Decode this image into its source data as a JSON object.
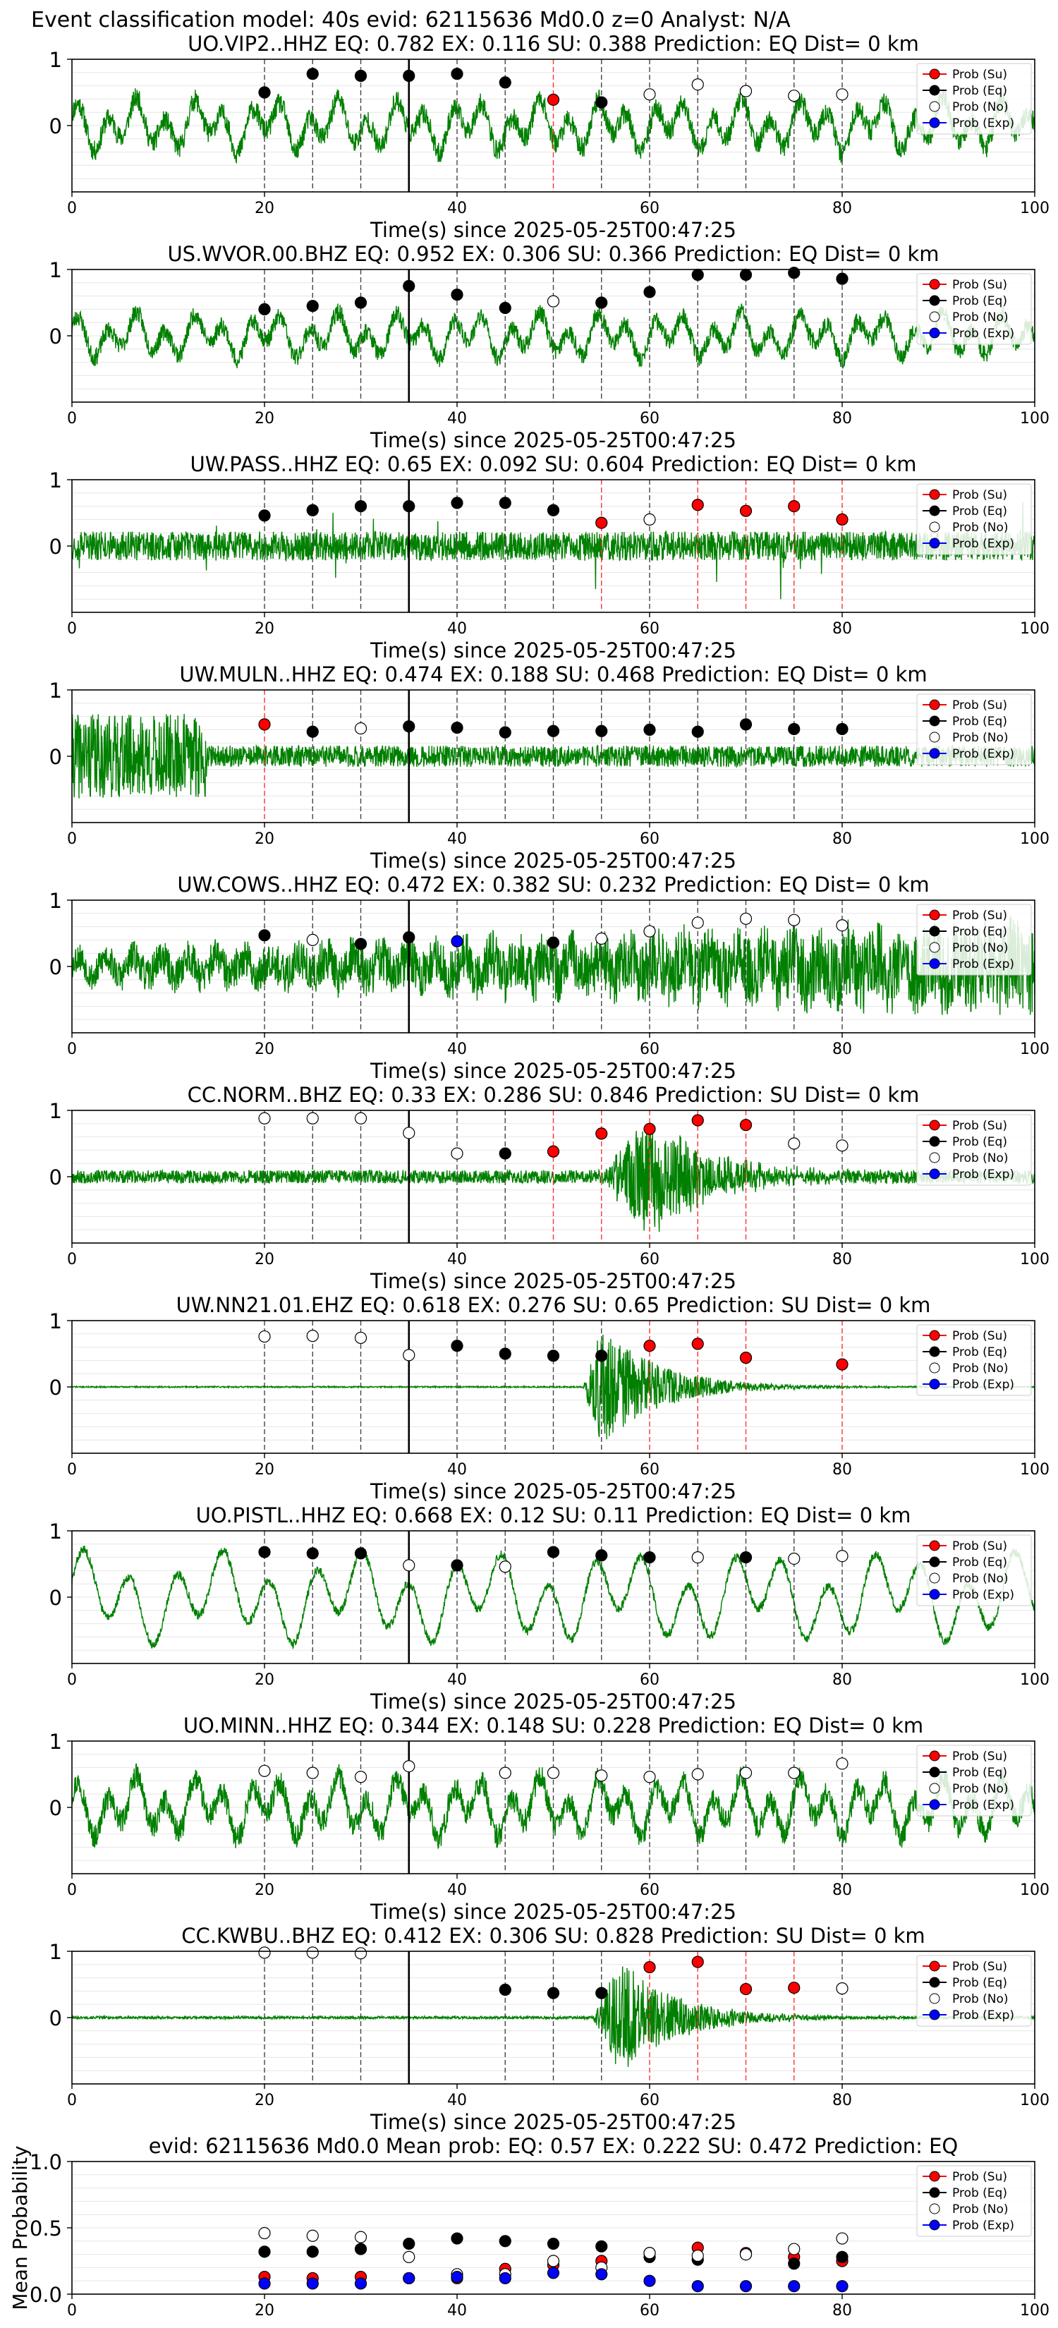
{
  "figure": {
    "suptitle": "Event classification model: 40s evid: 62115636 Md0.0 z=0 Analyst: N/A",
    "legend_labels": [
      "Prob (Su)",
      "Prob (Eq)",
      "Prob (No)",
      "Prob (Exp)"
    ],
    "colors": {
      "su": "#ff0000",
      "eq": "#000000",
      "no": "#ffffff",
      "exp": "#0000ff",
      "trace": "#008000"
    }
  },
  "chart_data": [
    {
      "type": "line",
      "title": "UO.VIP2..HHZ    EQ: 0.782   EX: 0.116   SU: 0.388    Prediction: EQ     Dist= 0 km",
      "xlabel": "Time(s) since 2025-05-25T00:47:25",
      "ylabel": "",
      "xlim": [
        0,
        100
      ],
      "ylim": [
        -1,
        1
      ],
      "xticks": [
        0,
        20,
        40,
        60,
        80,
        100
      ],
      "yticks": [
        0,
        1
      ],
      "trace": {
        "seed": 11,
        "style": "mid",
        "amp": 0.35
      },
      "arrival_time": 35,
      "points": [
        {
          "x": 20,
          "y": 0.5,
          "class": "eq"
        },
        {
          "x": 25,
          "y": 0.78,
          "class": "eq"
        },
        {
          "x": 30,
          "y": 0.75,
          "class": "eq"
        },
        {
          "x": 35,
          "y": 0.75,
          "class": "eq"
        },
        {
          "x": 40,
          "y": 0.78,
          "class": "eq"
        },
        {
          "x": 45,
          "y": 0.65,
          "class": "eq"
        },
        {
          "x": 50,
          "y": 0.39,
          "class": "su"
        },
        {
          "x": 55,
          "y": 0.35,
          "class": "eq"
        },
        {
          "x": 60,
          "y": 0.47,
          "class": "no"
        },
        {
          "x": 65,
          "y": 0.62,
          "class": "no"
        },
        {
          "x": 70,
          "y": 0.52,
          "class": "no"
        },
        {
          "x": 75,
          "y": 0.45,
          "class": "no"
        },
        {
          "x": 80,
          "y": 0.47,
          "class": "no"
        }
      ]
    },
    {
      "type": "line",
      "title": "US.WVOR.00.BHZ    EQ: 0.952   EX: 0.306   SU: 0.366    Prediction: EQ     Dist= 0 km",
      "xlabel": "Time(s) since 2025-05-25T00:47:25",
      "ylabel": "",
      "xlim": [
        0,
        100
      ],
      "ylim": [
        -1,
        1
      ],
      "xticks": [
        0,
        20,
        40,
        60,
        80,
        100
      ],
      "yticks": [
        0,
        1
      ],
      "trace": {
        "seed": 23,
        "style": "mid",
        "amp": 0.3
      },
      "arrival_time": 35,
      "points": [
        {
          "x": 20,
          "y": 0.4,
          "class": "eq"
        },
        {
          "x": 25,
          "y": 0.45,
          "class": "eq"
        },
        {
          "x": 30,
          "y": 0.5,
          "class": "eq"
        },
        {
          "x": 35,
          "y": 0.75,
          "class": "eq"
        },
        {
          "x": 40,
          "y": 0.62,
          "class": "eq"
        },
        {
          "x": 45,
          "y": 0.42,
          "class": "eq"
        },
        {
          "x": 50,
          "y": 0.52,
          "class": "no"
        },
        {
          "x": 55,
          "y": 0.5,
          "class": "eq"
        },
        {
          "x": 60,
          "y": 0.66,
          "class": "eq"
        },
        {
          "x": 65,
          "y": 0.92,
          "class": "eq"
        },
        {
          "x": 70,
          "y": 0.92,
          "class": "eq"
        },
        {
          "x": 75,
          "y": 0.95,
          "class": "eq"
        },
        {
          "x": 80,
          "y": 0.86,
          "class": "eq"
        }
      ]
    },
    {
      "type": "line",
      "title": "UW.PASS..HHZ    EQ: 0.65   EX: 0.092   SU: 0.604    Prediction: EQ     Dist= 0 km",
      "xlabel": "Time(s) since 2025-05-25T00:47:25",
      "ylabel": "",
      "xlim": [
        0,
        100
      ],
      "ylim": [
        -1,
        1
      ],
      "xticks": [
        0,
        20,
        40,
        60,
        80,
        100
      ],
      "yticks": [
        0,
        1
      ],
      "trace": {
        "seed": 37,
        "style": "noise",
        "amp": 0.2
      },
      "arrival_time": 35,
      "points": [
        {
          "x": 20,
          "y": 0.46,
          "class": "eq"
        },
        {
          "x": 25,
          "y": 0.54,
          "class": "eq"
        },
        {
          "x": 30,
          "y": 0.6,
          "class": "eq"
        },
        {
          "x": 35,
          "y": 0.6,
          "class": "eq"
        },
        {
          "x": 40,
          "y": 0.65,
          "class": "eq"
        },
        {
          "x": 45,
          "y": 0.65,
          "class": "eq"
        },
        {
          "x": 50,
          "y": 0.54,
          "class": "eq"
        },
        {
          "x": 55,
          "y": 0.35,
          "class": "su"
        },
        {
          "x": 60,
          "y": 0.4,
          "class": "no"
        },
        {
          "x": 65,
          "y": 0.62,
          "class": "su"
        },
        {
          "x": 70,
          "y": 0.53,
          "class": "su"
        },
        {
          "x": 75,
          "y": 0.6,
          "class": "su"
        },
        {
          "x": 80,
          "y": 0.4,
          "class": "su"
        }
      ]
    },
    {
      "type": "line",
      "title": "UW.MULN..HHZ    EQ: 0.474   EX: 0.188   SU: 0.468    Prediction: EQ     Dist= 0 km",
      "xlabel": "Time(s) since 2025-05-25T00:47:25",
      "ylabel": "",
      "xlim": [
        0,
        100
      ],
      "ylim": [
        -1,
        1
      ],
      "xticks": [
        0,
        20,
        40,
        60,
        80,
        100
      ],
      "yticks": [
        0,
        1
      ],
      "trace": {
        "seed": 41,
        "style": "early",
        "amp": 0.2
      },
      "arrival_time": 35,
      "points": [
        {
          "x": 20,
          "y": 0.48,
          "class": "su"
        },
        {
          "x": 25,
          "y": 0.37,
          "class": "eq"
        },
        {
          "x": 30,
          "y": 0.42,
          "class": "no"
        },
        {
          "x": 35,
          "y": 0.45,
          "class": "eq"
        },
        {
          "x": 40,
          "y": 0.43,
          "class": "eq"
        },
        {
          "x": 45,
          "y": 0.36,
          "class": "eq"
        },
        {
          "x": 50,
          "y": 0.38,
          "class": "eq"
        },
        {
          "x": 55,
          "y": 0.38,
          "class": "eq"
        },
        {
          "x": 60,
          "y": 0.4,
          "class": "eq"
        },
        {
          "x": 65,
          "y": 0.37,
          "class": "eq"
        },
        {
          "x": 70,
          "y": 0.48,
          "class": "eq"
        },
        {
          "x": 75,
          "y": 0.41,
          "class": "eq"
        },
        {
          "x": 80,
          "y": 0.41,
          "class": "eq"
        }
      ]
    },
    {
      "type": "line",
      "title": "UW.COWS..HHZ    EQ: 0.472   EX: 0.382   SU: 0.232    Prediction: EQ     Dist= 0 km",
      "xlabel": "Time(s) since 2025-05-25T00:47:25",
      "ylabel": "",
      "xlim": [
        0,
        100
      ],
      "ylim": [
        -1,
        1
      ],
      "xticks": [
        0,
        20,
        40,
        60,
        80,
        100
      ],
      "yticks": [
        0,
        1
      ],
      "trace": {
        "seed": 53,
        "style": "growing",
        "amp": 0.3
      },
      "arrival_time": 35,
      "points": [
        {
          "x": 20,
          "y": 0.47,
          "class": "eq"
        },
        {
          "x": 25,
          "y": 0.4,
          "class": "no"
        },
        {
          "x": 30,
          "y": 0.34,
          "class": "eq"
        },
        {
          "x": 35,
          "y": 0.44,
          "class": "eq"
        },
        {
          "x": 40,
          "y": 0.38,
          "class": "exp"
        },
        {
          "x": 50,
          "y": 0.36,
          "class": "eq"
        },
        {
          "x": 55,
          "y": 0.42,
          "class": "no"
        },
        {
          "x": 60,
          "y": 0.53,
          "class": "no"
        },
        {
          "x": 65,
          "y": 0.66,
          "class": "no"
        },
        {
          "x": 70,
          "y": 0.72,
          "class": "no"
        },
        {
          "x": 75,
          "y": 0.7,
          "class": "no"
        },
        {
          "x": 80,
          "y": 0.62,
          "class": "no"
        }
      ]
    },
    {
      "type": "line",
      "title": "CC.NORM..BHZ    EQ: 0.33   EX: 0.286   SU: 0.846    Prediction: SU     Dist= 0 km",
      "xlabel": "Time(s) since 2025-05-25T00:47:25",
      "ylabel": "",
      "xlim": [
        0,
        100
      ],
      "ylim": [
        -1,
        1
      ],
      "xticks": [
        0,
        20,
        40,
        60,
        80,
        100
      ],
      "yticks": [
        0,
        1
      ],
      "trace": {
        "seed": 67,
        "style": "burst",
        "amp": 0.1,
        "burst_start": 55,
        "burst_peak": 60,
        "burst_amp": 0.95
      },
      "arrival_time": 35,
      "points": [
        {
          "x": 20,
          "y": 0.88,
          "class": "no"
        },
        {
          "x": 25,
          "y": 0.88,
          "class": "no"
        },
        {
          "x": 30,
          "y": 0.88,
          "class": "no"
        },
        {
          "x": 35,
          "y": 0.66,
          "class": "no"
        },
        {
          "x": 40,
          "y": 0.35,
          "class": "no"
        },
        {
          "x": 45,
          "y": 0.35,
          "class": "eq"
        },
        {
          "x": 50,
          "y": 0.38,
          "class": "su"
        },
        {
          "x": 55,
          "y": 0.65,
          "class": "su"
        },
        {
          "x": 60,
          "y": 0.72,
          "class": "su"
        },
        {
          "x": 65,
          "y": 0.85,
          "class": "su"
        },
        {
          "x": 70,
          "y": 0.78,
          "class": "su"
        },
        {
          "x": 75,
          "y": 0.5,
          "class": "no"
        },
        {
          "x": 80,
          "y": 0.47,
          "class": "no"
        }
      ]
    },
    {
      "type": "line",
      "title": "UW.NN21.01.EHZ    EQ: 0.618   EX: 0.276   SU: 0.65    Prediction: SU     Dist= 0 km",
      "xlabel": "Time(s) since 2025-05-25T00:47:25",
      "ylabel": "",
      "xlim": [
        0,
        100
      ],
      "ylim": [
        -1,
        1
      ],
      "xticks": [
        0,
        20,
        40,
        60,
        80,
        100
      ],
      "yticks": [
        0,
        1
      ],
      "trace": {
        "seed": 71,
        "style": "burst",
        "amp": 0.01,
        "burst_start": 53,
        "burst_peak": 55,
        "burst_amp": 0.9
      },
      "arrival_time": 35,
      "points": [
        {
          "x": 20,
          "y": 0.76,
          "class": "no"
        },
        {
          "x": 25,
          "y": 0.77,
          "class": "no"
        },
        {
          "x": 30,
          "y": 0.74,
          "class": "no"
        },
        {
          "x": 35,
          "y": 0.48,
          "class": "no"
        },
        {
          "x": 40,
          "y": 0.62,
          "class": "eq"
        },
        {
          "x": 45,
          "y": 0.5,
          "class": "eq"
        },
        {
          "x": 50,
          "y": 0.47,
          "class": "eq"
        },
        {
          "x": 55,
          "y": 0.47,
          "class": "eq"
        },
        {
          "x": 60,
          "y": 0.62,
          "class": "su"
        },
        {
          "x": 65,
          "y": 0.65,
          "class": "su"
        },
        {
          "x": 70,
          "y": 0.44,
          "class": "su"
        },
        {
          "x": 80,
          "y": 0.34,
          "class": "su"
        }
      ]
    },
    {
      "type": "line",
      "title": "UO.PISTL..HHZ    EQ: 0.668   EX: 0.12   SU: 0.11    Prediction: EQ     Dist= 0 km",
      "xlabel": "Time(s) since 2025-05-25T00:47:25",
      "ylabel": "",
      "xlim": [
        0,
        100
      ],
      "ylim": [
        -1,
        1
      ],
      "xticks": [
        0,
        20,
        40,
        60,
        80,
        100
      ],
      "yticks": [
        0,
        1
      ],
      "trace": {
        "seed": 83,
        "style": "slow",
        "amp": 0.55
      },
      "arrival_time": 35,
      "points": [
        {
          "x": 20,
          "y": 0.68,
          "class": "eq"
        },
        {
          "x": 25,
          "y": 0.66,
          "class": "eq"
        },
        {
          "x": 30,
          "y": 0.66,
          "class": "eq"
        },
        {
          "x": 35,
          "y": 0.48,
          "class": "no"
        },
        {
          "x": 40,
          "y": 0.48,
          "class": "eq"
        },
        {
          "x": 45,
          "y": 0.46,
          "class": "no"
        },
        {
          "x": 50,
          "y": 0.68,
          "class": "eq"
        },
        {
          "x": 55,
          "y": 0.63,
          "class": "eq"
        },
        {
          "x": 60,
          "y": 0.6,
          "class": "eq"
        },
        {
          "x": 65,
          "y": 0.6,
          "class": "no"
        },
        {
          "x": 70,
          "y": 0.6,
          "class": "eq"
        },
        {
          "x": 75,
          "y": 0.58,
          "class": "no"
        },
        {
          "x": 80,
          "y": 0.62,
          "class": "no"
        }
      ]
    },
    {
      "type": "line",
      "title": "UO.MINN..HHZ    EQ: 0.344   EX: 0.148   SU: 0.228    Prediction: EQ     Dist= 0 km",
      "xlabel": "Time(s) since 2025-05-25T00:47:25",
      "ylabel": "",
      "xlim": [
        0,
        100
      ],
      "ylim": [
        -1,
        1
      ],
      "xticks": [
        0,
        20,
        40,
        60,
        80,
        100
      ],
      "yticks": [
        0,
        1
      ],
      "trace": {
        "seed": 97,
        "style": "mid",
        "amp": 0.4
      },
      "arrival_time": 35,
      "points": [
        {
          "x": 20,
          "y": 0.55,
          "class": "no"
        },
        {
          "x": 25,
          "y": 0.52,
          "class": "no"
        },
        {
          "x": 30,
          "y": 0.46,
          "class": "no"
        },
        {
          "x": 35,
          "y": 0.62,
          "class": "no"
        },
        {
          "x": 45,
          "y": 0.52,
          "class": "no"
        },
        {
          "x": 50,
          "y": 0.52,
          "class": "no"
        },
        {
          "x": 55,
          "y": 0.48,
          "class": "no"
        },
        {
          "x": 60,
          "y": 0.46,
          "class": "no"
        },
        {
          "x": 65,
          "y": 0.5,
          "class": "no"
        },
        {
          "x": 70,
          "y": 0.52,
          "class": "no"
        },
        {
          "x": 75,
          "y": 0.52,
          "class": "no"
        },
        {
          "x": 80,
          "y": 0.66,
          "class": "no"
        }
      ]
    },
    {
      "type": "line",
      "title": "CC.KWBU..BHZ    EQ: 0.412   EX: 0.306   SU: 0.828    Prediction: SU     Dist= 0 km",
      "xlabel": "Time(s) since 2025-05-25T00:47:25",
      "ylabel": "",
      "xlim": [
        0,
        100
      ],
      "ylim": [
        -1,
        1
      ],
      "xticks": [
        0,
        20,
        40,
        60,
        80,
        100
      ],
      "yticks": [
        0,
        1
      ],
      "trace": {
        "seed": 101,
        "style": "burst",
        "amp": 0.02,
        "burst_start": 54,
        "burst_peak": 57,
        "burst_amp": 0.85
      },
      "arrival_time": 35,
      "points": [
        {
          "x": 20,
          "y": 0.98,
          "class": "no"
        },
        {
          "x": 25,
          "y": 0.98,
          "class": "no"
        },
        {
          "x": 30,
          "y": 0.97,
          "class": "no"
        },
        {
          "x": 45,
          "y": 0.42,
          "class": "eq"
        },
        {
          "x": 50,
          "y": 0.37,
          "class": "eq"
        },
        {
          "x": 55,
          "y": 0.37,
          "class": "eq"
        },
        {
          "x": 60,
          "y": 0.76,
          "class": "su"
        },
        {
          "x": 65,
          "y": 0.84,
          "class": "su"
        },
        {
          "x": 70,
          "y": 0.43,
          "class": "su"
        },
        {
          "x": 75,
          "y": 0.45,
          "class": "su"
        },
        {
          "x": 80,
          "y": 0.44,
          "class": "no"
        }
      ]
    },
    {
      "type": "scatter",
      "title": "evid: 62115636   Md0.0    Mean prob:    EQ: 0.57   EX: 0.222   SU: 0.472    Prediction: EQ",
      "xlabel": "",
      "ylabel": "Mean Probability",
      "xlim": [
        0,
        100
      ],
      "ylim": [
        0,
        1
      ],
      "xticks": [
        0,
        20,
        40,
        60,
        80,
        100
      ],
      "yticks": [
        0.0,
        0.5,
        1.0
      ],
      "x": [
        20,
        25,
        30,
        35,
        40,
        45,
        50,
        55,
        60,
        65,
        70,
        75,
        80
      ],
      "series": [
        {
          "name": "Prob (Su)",
          "class": "su",
          "values": [
            0.13,
            0.12,
            0.13,
            0.12,
            0.12,
            0.19,
            0.22,
            0.25,
            0.31,
            0.35,
            0.31,
            0.28,
            0.25
          ]
        },
        {
          "name": "Prob (Eq)",
          "class": "eq",
          "values": [
            0.32,
            0.32,
            0.34,
            0.38,
            0.42,
            0.4,
            0.38,
            0.36,
            0.28,
            0.26,
            0.3,
            0.23,
            0.28
          ]
        },
        {
          "name": "Prob (No)",
          "class": "no",
          "values": [
            0.46,
            0.44,
            0.43,
            0.28,
            0.15,
            0.15,
            0.25,
            0.2,
            0.31,
            0.29,
            0.3,
            0.34,
            0.42
          ]
        },
        {
          "name": "Prob (Exp)",
          "class": "exp",
          "values": [
            0.08,
            0.08,
            0.08,
            0.12,
            0.13,
            0.12,
            0.16,
            0.15,
            0.1,
            0.06,
            0.06,
            0.06,
            0.06
          ]
        }
      ]
    }
  ]
}
